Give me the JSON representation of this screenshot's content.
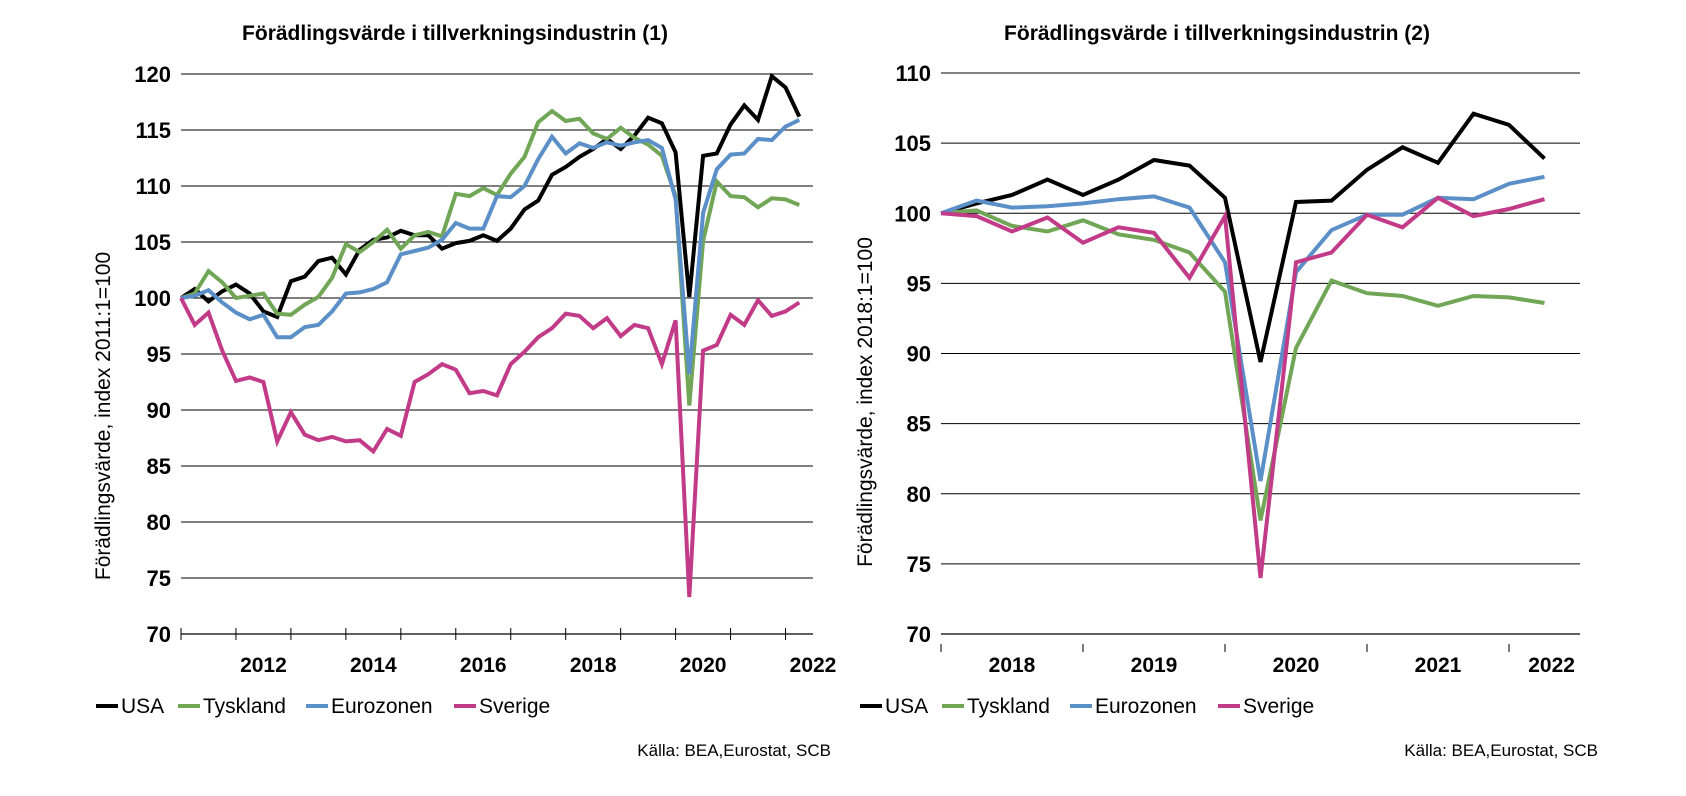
{
  "chart_data": [
    {
      "type": "line",
      "title": "Förädlingsvärde i tillverkningsindustrin (1)",
      "ylabel": "Förädlingsvärde, index 2011:1=100",
      "xlabel": "",
      "ylim": [
        70,
        120
      ],
      "yticks": [
        70,
        75,
        80,
        85,
        90,
        95,
        100,
        105,
        110,
        115,
        120
      ],
      "xlim": [
        2011.0,
        2022.5
      ],
      "xticks": [
        2012,
        2014,
        2016,
        2018,
        2020,
        2022
      ],
      "xtick_labels": [
        "2012",
        "2014",
        "2016",
        "2018",
        "2020",
        "2022"
      ],
      "x_start": 2011.0,
      "x_step": 0.25,
      "grid": true,
      "legend": "bottom",
      "source": "Källa: BEA,Eurostat, SCB",
      "series": [
        {
          "name": "USA",
          "color": "#000000",
          "values": [
            100,
            100.8,
            99.7,
            100.6,
            101.2,
            100.4,
            98.8,
            98.3,
            101.5,
            101.9,
            103.3,
            103.6,
            102.1,
            104.3,
            105.2,
            105.4,
            106.0,
            105.6,
            105.6,
            104.4,
            104.9,
            105.1,
            105.6,
            105.1,
            106.2,
            107.9,
            108.7,
            111.0,
            111.7,
            112.6,
            113.3,
            114.2,
            113.3,
            114.5,
            116.1,
            115.6,
            113.0,
            100.1,
            112.7,
            112.9,
            115.5,
            117.2,
            115.9,
            119.8,
            118.8,
            116.2
          ]
        },
        {
          "name": "Tyskland",
          "color": "#70a655",
          "values": [
            100,
            100.4,
            102.4,
            101.4,
            100.0,
            100.2,
            100.4,
            98.6,
            98.5,
            99.4,
            100.1,
            101.8,
            104.8,
            104.1,
            105.0,
            106.1,
            104.4,
            105.6,
            105.9,
            105.5,
            109.3,
            109.1,
            109.8,
            109.2,
            111.1,
            112.6,
            115.7,
            116.7,
            115.8,
            116.0,
            114.7,
            114.2,
            115.2,
            114.3,
            113.7,
            112.7,
            109.1,
            90.4,
            105.1,
            110.4,
            109.1,
            109.0,
            108.1,
            108.9,
            108.8,
            108.3
          ]
        },
        {
          "name": "Eurozonen",
          "color": "#5b8fc7",
          "values": [
            100,
            100.2,
            100.7,
            99.6,
            98.7,
            98.1,
            98.5,
            96.5,
            96.5,
            97.4,
            97.6,
            98.8,
            100.4,
            100.5,
            100.8,
            101.4,
            103.9,
            104.2,
            104.5,
            105.2,
            106.7,
            106.2,
            106.2,
            109.1,
            109.0,
            110.0,
            112.4,
            114.4,
            112.9,
            113.8,
            113.4,
            113.9,
            113.6,
            113.9,
            114.1,
            113.4,
            108.8,
            93.2,
            107.6,
            111.5,
            112.8,
            112.9,
            114.2,
            114.1,
            115.3,
            115.9
          ]
        },
        {
          "name": "Sverige",
          "color": "#c23b88",
          "values": [
            100,
            97.6,
            98.7,
            95.3,
            92.6,
            92.9,
            92.5,
            87.2,
            89.8,
            87.8,
            87.3,
            87.6,
            87.2,
            87.3,
            86.3,
            88.3,
            87.7,
            92.5,
            93.2,
            94.1,
            93.6,
            91.5,
            91.7,
            91.3,
            94.1,
            95.2,
            96.5,
            97.3,
            98.6,
            98.4,
            97.3,
            98.2,
            96.6,
            97.6,
            97.3,
            94.1,
            98.0,
            73.3,
            95.3,
            95.8,
            98.5,
            97.6,
            99.8,
            98.4,
            98.8,
            99.6
          ]
        }
      ]
    },
    {
      "type": "line",
      "title": "Förädlingsvärde i tillverkningsindustrin (2)",
      "ylabel": "Förädlingsvärde, index 2018:1=100",
      "xlabel": "",
      "ylim": [
        70,
        110
      ],
      "yticks": [
        70,
        75,
        80,
        85,
        90,
        95,
        100,
        105,
        110
      ],
      "xlim": [
        2018.0,
        2022.5
      ],
      "xticks": [
        2018,
        2019,
        2020,
        2021,
        2022
      ],
      "xtick_labels": [
        "2018",
        "2019",
        "2020",
        "2021",
        "2022"
      ],
      "x_start": 2018.0,
      "x_step": 0.25,
      "grid": true,
      "legend": "bottom",
      "source": "Källa: BEA,Eurostat, SCB",
      "series": [
        {
          "name": "USA",
          "color": "#000000",
          "values": [
            100,
            100.7,
            101.3,
            102.4,
            101.3,
            102.4,
            103.8,
            103.4,
            101.1,
            89.4,
            100.8,
            100.9,
            103.1,
            104.7,
            103.6,
            107.1,
            106.3,
            103.9
          ]
        },
        {
          "name": "Tyskland",
          "color": "#70a655",
          "values": [
            100,
            100.2,
            99.1,
            98.7,
            99.5,
            98.5,
            98.1,
            97.2,
            94.4,
            78.1,
            90.4,
            95.2,
            94.3,
            94.1,
            93.4,
            94.1,
            94.0,
            93.6
          ]
        },
        {
          "name": "Eurozonen",
          "color": "#5b8fc7",
          "values": [
            100,
            100.9,
            100.4,
            100.5,
            100.7,
            101.0,
            101.2,
            100.4,
            96.5,
            80.9,
            95.8,
            98.8,
            99.9,
            99.9,
            101.1,
            101.0,
            102.1,
            102.6
          ]
        },
        {
          "name": "Sverige",
          "color": "#c23b88",
          "values": [
            100,
            99.8,
            98.7,
            99.7,
            97.9,
            99.0,
            98.6,
            95.4,
            99.8,
            74.0,
            96.5,
            97.2,
            99.9,
            99.0,
            101.1,
            99.8,
            100.3,
            101.0
          ]
        }
      ]
    }
  ]
}
